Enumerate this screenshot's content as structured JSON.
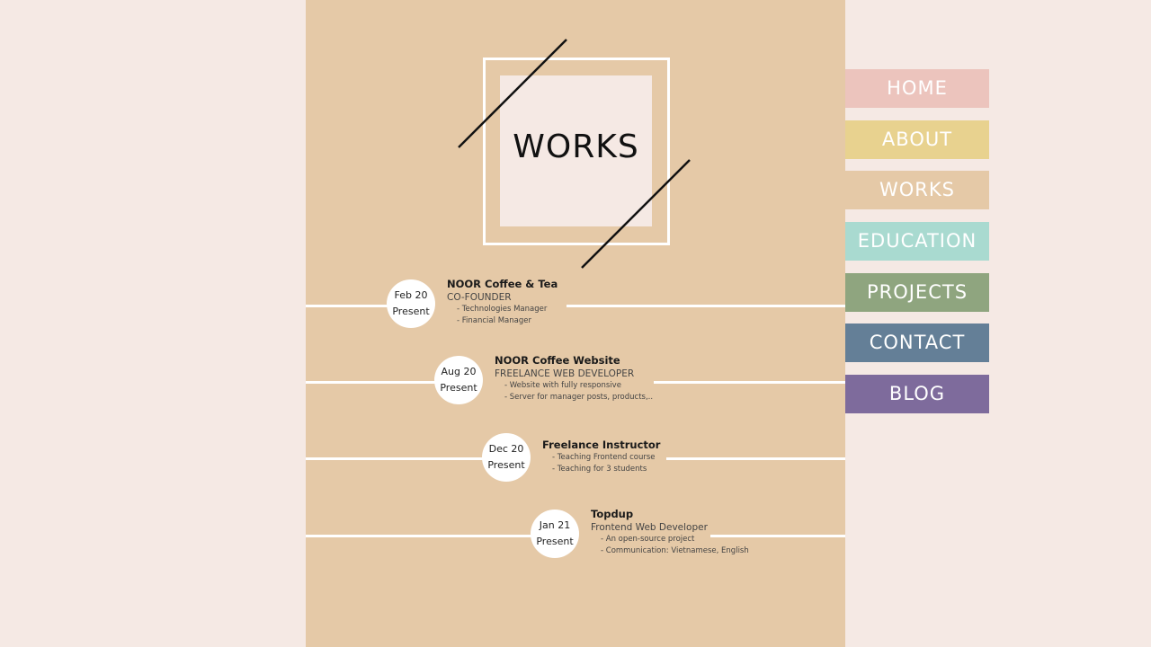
{
  "logo": {
    "title": "WORKS"
  },
  "nav": {
    "items": [
      {
        "label": "HOME",
        "color": "#ecc4bd"
      },
      {
        "label": "ABOUT",
        "color": "#e8d28f"
      },
      {
        "label": "WORKS",
        "color": "#e5c9a7"
      },
      {
        "label": "EDUCATION",
        "color": "#a9dad0"
      },
      {
        "label": "PROJECTS",
        "color": "#8fa57f"
      },
      {
        "label": "CONTACT",
        "color": "#647f97"
      },
      {
        "label": "BLOG",
        "color": "#7e6b9c"
      }
    ]
  },
  "timeline": [
    {
      "date": "Feb 20",
      "status": "Present",
      "company": "NOOR Coffee & Tea",
      "role": "CO-FOUNDER",
      "details": [
        "- Technologies Manager",
        "- Financial Manager"
      ]
    },
    {
      "date": "Aug 20",
      "status": "Present",
      "company": "NOOR Coffee Website",
      "role": "FREELANCE WEB DEVELOPER",
      "details": [
        "- Website with fully responsive",
        "- Server for manager posts, products,.."
      ]
    },
    {
      "date": "Dec 20",
      "status": "Present",
      "company": "Freelance Instructor",
      "role": "",
      "details": [
        "- Teaching Frontend course",
        "- Teaching for 3 students"
      ]
    },
    {
      "date": "Jan 21",
      "status": "Present",
      "company": "Topdup",
      "role": "Frontend Web Developer",
      "details": [
        "- An open-source project",
        "- Communication: Vietnamese, English"
      ]
    }
  ],
  "colors": {
    "background": "#f5e9e4",
    "panel": "#e5c9a7"
  }
}
